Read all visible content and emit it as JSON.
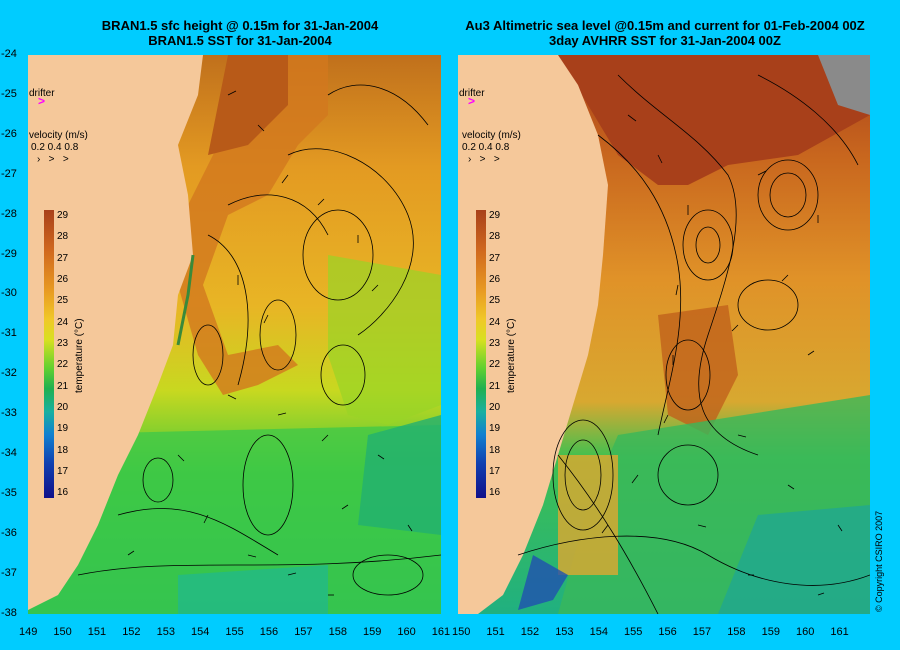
{
  "left_panel": {
    "title_line1": "BRAN1.5 sfc height @ 0.15m for 31-Jan-2004",
    "title_line2": "BRAN1.5 SST for 31-Jan-2004"
  },
  "right_panel": {
    "title_line1": "Au3 Altimetric sea level  @0.15m and current for 01-Feb-2004 00Z",
    "title_line2": "3day AVHRR SST for 31-Jan-2004 00Z"
  },
  "legend": {
    "drifter_label": "drifter",
    "drifter_symbol": ">",
    "velocity_title": "velocity (m/s)",
    "velocity_values": "0.2 0.4 0.8",
    "temperature_title": "temperature (°C)",
    "colorbar_ticks": [
      "29",
      "28",
      "27",
      "26",
      "25",
      "24",
      "23",
      "22",
      "21",
      "20",
      "19",
      "18",
      "17",
      "16"
    ]
  },
  "axes": {
    "x_ticks_left": [
      "149",
      "150",
      "151",
      "152",
      "153",
      "154",
      "155",
      "156",
      "157",
      "158",
      "159",
      "160",
      "161"
    ],
    "x_ticks_right": [
      "150",
      "151",
      "152",
      "153",
      "154",
      "155",
      "156",
      "157",
      "158",
      "159",
      "160",
      "161"
    ],
    "y_ticks": [
      "-24",
      "-25",
      "-26",
      "-27",
      "-28",
      "-29",
      "-30",
      "-31",
      "-32",
      "-33",
      "-34",
      "-35",
      "-36",
      "-37",
      "-38"
    ]
  },
  "copyright": "© Copyright CSIRO 2007",
  "colors": {
    "background": "#00ccff",
    "land": "#f5c89a",
    "drifter": "#ff00ff"
  }
}
